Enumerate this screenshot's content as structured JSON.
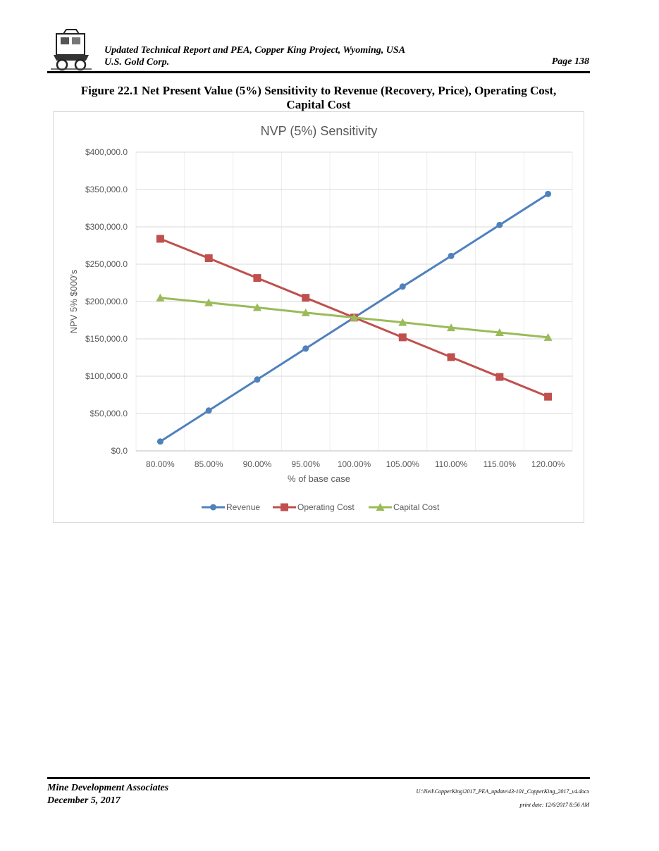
{
  "header": {
    "title_line1": "Updated Technical Report and PEA, Copper King Project, Wyoming, USA",
    "title_line2": "U.S. Gold Corp.",
    "page": "Page 138"
  },
  "figure": {
    "caption_line1": "Figure 22.1 Net Present Value (5%) Sensitivity to Revenue (Recovery, Price), Operating Cost,",
    "caption_line2": "Capital Cost"
  },
  "chart_data": {
    "type": "line",
    "title": "NVP (5%) Sensitivity",
    "xlabel": "% of base case",
    "ylabel": "NPV 5% $000's",
    "categories": [
      "80.00%",
      "85.00%",
      "90.00%",
      "95.00%",
      "100.00%",
      "105.00%",
      "110.00%",
      "115.00%",
      "120.00%"
    ],
    "ylim": [
      0,
      400000
    ],
    "yticks": [
      0,
      50000,
      100000,
      150000,
      200000,
      250000,
      300000,
      350000,
      400000
    ],
    "ytick_labels": [
      "$0.0",
      "$50,000.0",
      "$100,000.0",
      "$150,000.0",
      "$200,000.0",
      "$250,000.0",
      "$300,000.0",
      "$350,000.0",
      "$400,000.0"
    ],
    "grid": true,
    "legend": "bottom",
    "series": [
      {
        "name": "Revenue",
        "color": "#4f81bd",
        "marker": "circle",
        "values": [
          12500,
          54000,
          95500,
          137000,
          178500,
          220000,
          261000,
          302500,
          344000
        ]
      },
      {
        "name": "Operating Cost",
        "color": "#c0504d",
        "marker": "square",
        "values": [
          284000,
          258000,
          231500,
          205000,
          178500,
          152000,
          125500,
          99000,
          72500
        ]
      },
      {
        "name": "Capital Cost",
        "color": "#9bbb59",
        "marker": "triangle",
        "values": [
          205000,
          198500,
          192000,
          185000,
          178500,
          172000,
          165000,
          158500,
          152000
        ]
      }
    ]
  },
  "footer": {
    "company": "Mine Development Associates",
    "date": "December 5, 2017",
    "filepath": "U:\\Neil\\CopperKing\\2017_PEA_update\\43-101_CopperKing_2017_v4.docx",
    "print_date": "print date: 12/6/2017 8:56 AM"
  }
}
